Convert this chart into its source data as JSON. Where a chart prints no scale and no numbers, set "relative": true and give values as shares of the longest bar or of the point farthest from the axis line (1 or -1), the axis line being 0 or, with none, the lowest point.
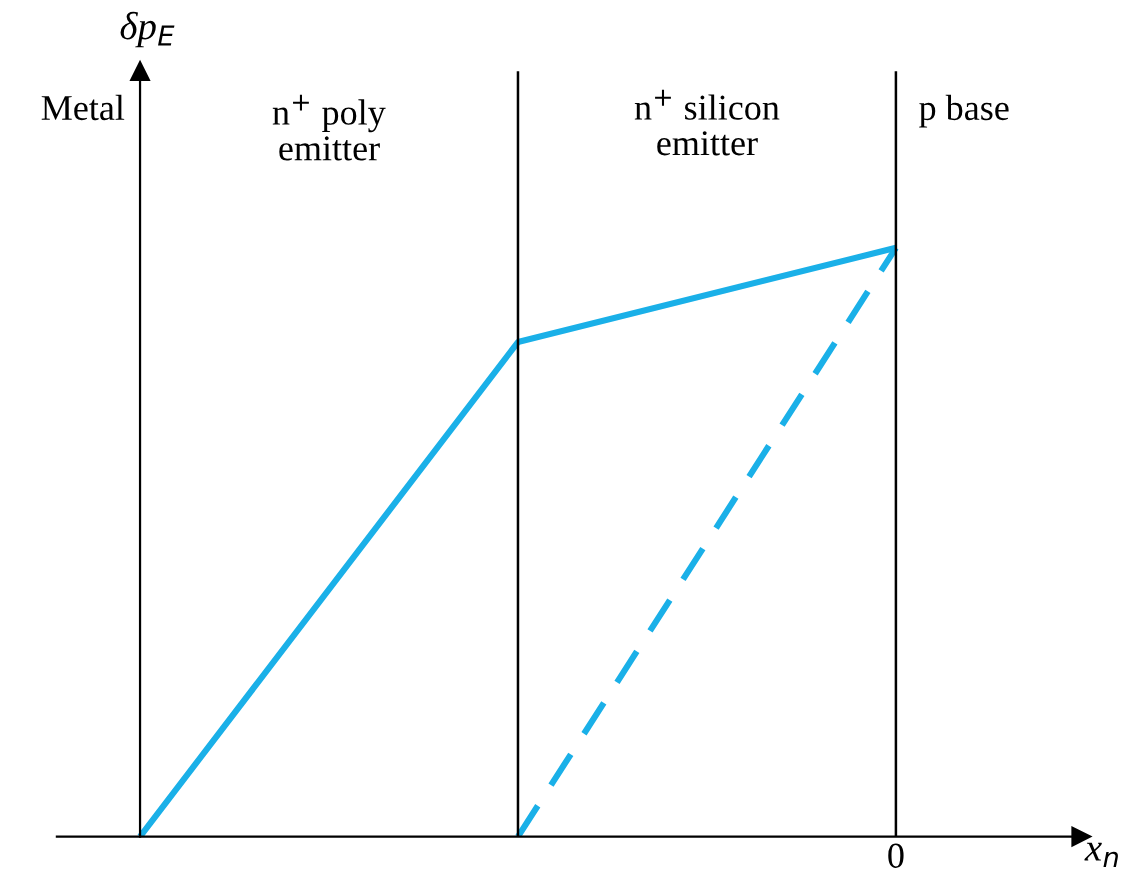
{
  "chart_data": {
    "type": "line",
    "relative": true,
    "xlabel": "x$_{n}$",
    "categories": [
      null,
      null,
      null
    ],
    "series": [
      {
        "color": "#1ab0e8",
        "values": [
          0,
          0.84,
          1
        ],
        "line_style": "solid"
      },
      {
        "color": "#1ab0e8",
        "values": [
          null,
          0,
          1
        ],
        "line_style": "dashed"
      }
    ],
    "annotations": [
      "Metal",
      "n$^{+}$ poly\nemitter",
      "n$^{+}$ silicon\nemitter",
      "p base",
      "0",
      "δp$_{E}$"
    ],
    "grid": false,
    "marker": "none"
  }
}
